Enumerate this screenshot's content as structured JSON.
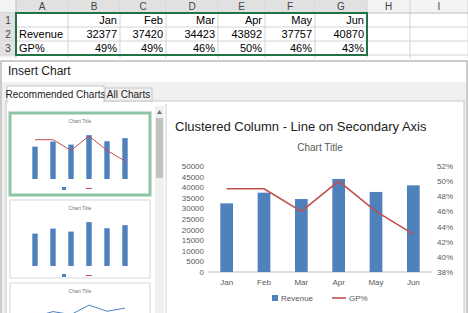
{
  "table": {
    "columns": [
      "A",
      "B",
      "C",
      "D",
      "E",
      "F",
      "G",
      "H",
      "I"
    ],
    "row_numbers": [
      1,
      2,
      3
    ],
    "rows": [
      [
        null,
        "Jan",
        "Feb",
        "Mar",
        "Apr",
        "May",
        "Jun"
      ],
      [
        "Revenue",
        32377,
        37420,
        34423,
        43892,
        37757,
        40870
      ],
      [
        "GP%",
        "49%",
        "49%",
        "46%",
        "50%",
        "46%",
        "43%"
      ]
    ]
  },
  "dialog": {
    "title": "Insert Chart",
    "tabs": [
      "Recommended Charts",
      "All Charts"
    ],
    "preview_heading": "Clustered Column - Line on Secondary Axis",
    "thumbnails": [
      {
        "title": "Chart Title",
        "type": "combo"
      },
      {
        "title": "Chart Title",
        "type": "bar"
      },
      {
        "title": "Chart Title",
        "type": "line"
      }
    ]
  },
  "chart_data": {
    "type": "bar",
    "title": "Chart Title",
    "categories": [
      "Jan",
      "Feb",
      "Mar",
      "Apr",
      "May",
      "Jun"
    ],
    "series": [
      {
        "name": "Revenue",
        "type": "bar",
        "color": "#4f81bd",
        "values": [
          32377,
          37420,
          34423,
          43892,
          37757,
          40870
        ]
      },
      {
        "name": "GP%",
        "type": "line",
        "axis": "y2",
        "color": "#c0504d",
        "values": [
          49,
          49,
          46,
          50,
          46,
          43
        ]
      }
    ],
    "ylim": [
      0,
      50000
    ],
    "yticks": [
      0,
      5000,
      10000,
      15000,
      20000,
      25000,
      30000,
      35000,
      40000,
      45000,
      50000
    ],
    "y2lim": [
      38,
      52
    ],
    "y2ticks": [
      {
        "value": 38,
        "label": "38%"
      },
      {
        "value": 40,
        "label": "40%"
      },
      {
        "value": 42,
        "label": "42%"
      },
      {
        "value": 44,
        "label": "44%"
      },
      {
        "value": 46,
        "label": "46%"
      },
      {
        "value": 48,
        "label": "48%"
      },
      {
        "value": 50,
        "label": "50%"
      },
      {
        "value": 52,
        "label": "52%"
      }
    ],
    "legend": "bottom",
    "grid": false
  }
}
